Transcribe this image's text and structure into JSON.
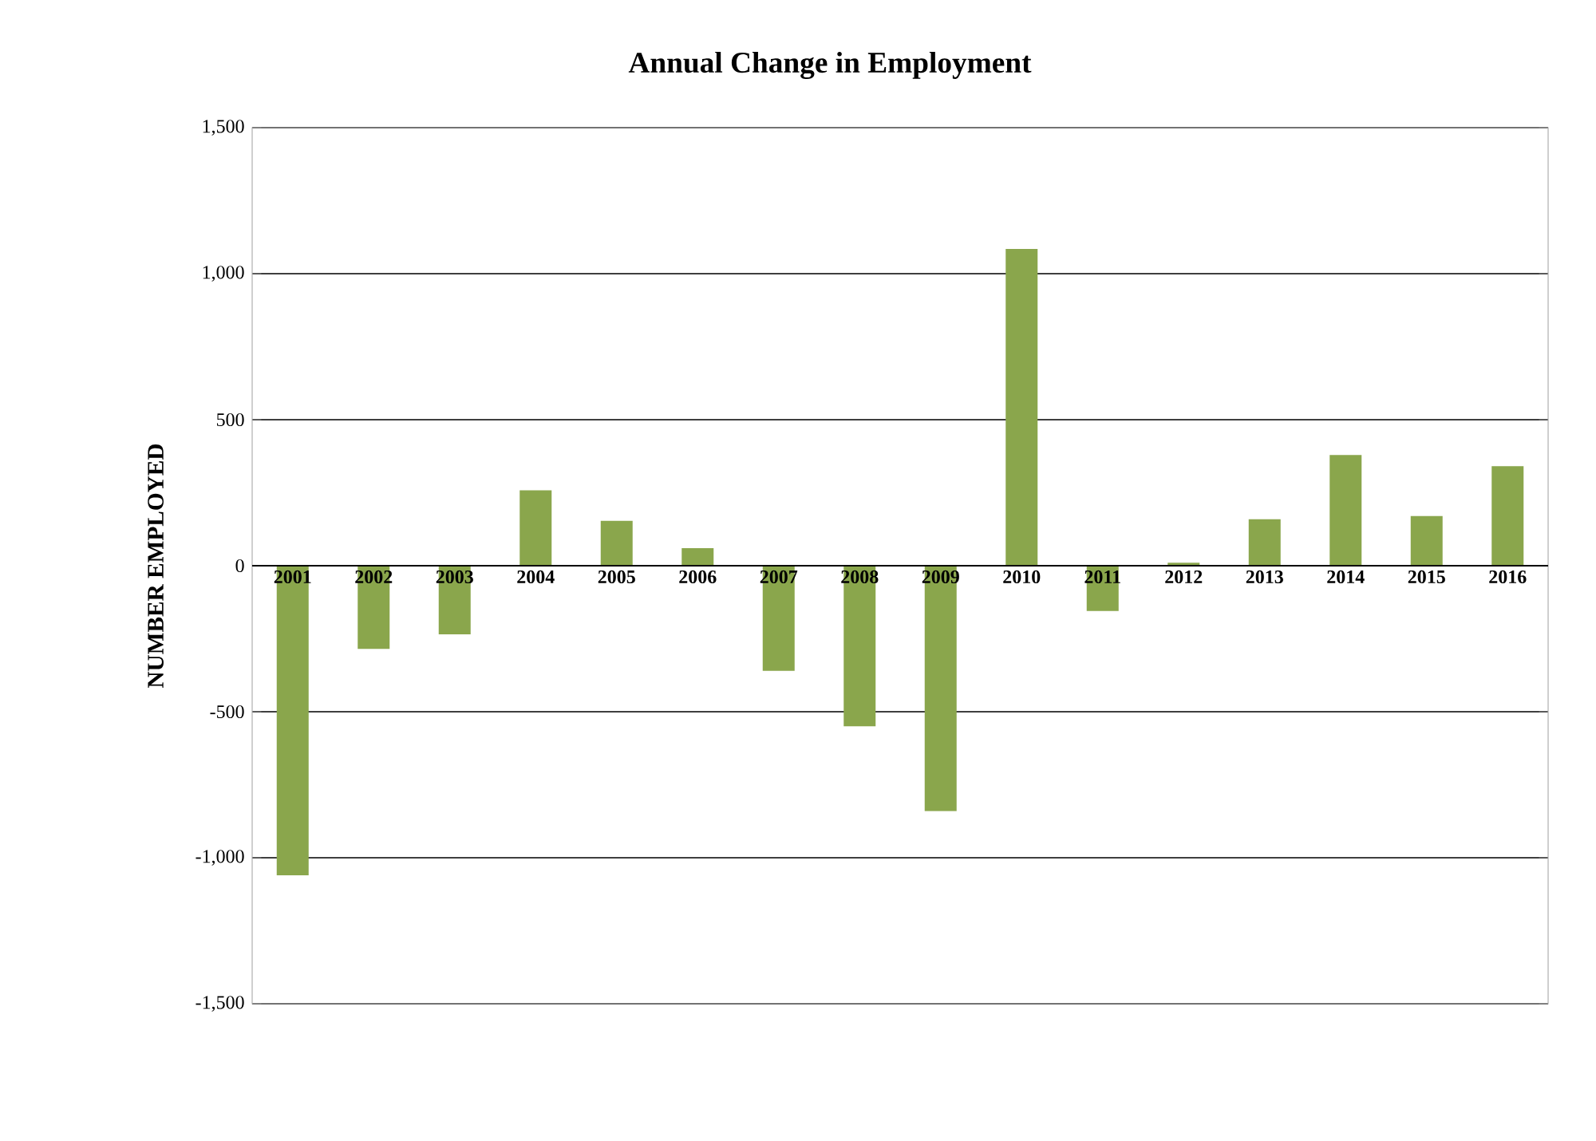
{
  "chart_data": {
    "type": "bar",
    "title": "Annual Change in Employment",
    "ylabel": "NUMBER EMPLOYED",
    "categories": [
      "2001",
      "2002",
      "2003",
      "2004",
      "2005",
      "2006",
      "2007",
      "2008",
      "2009",
      "2010",
      "2011",
      "2012",
      "2013",
      "2014",
      "2015",
      "2016"
    ],
    "values": [
      -1060,
      -285,
      -235,
      258,
      154,
      60,
      -360,
      -550,
      -840,
      1085,
      -155,
      10,
      159,
      379,
      170,
      341
    ],
    "color": "#8aa64c",
    "ylim": [
      -1500,
      1500
    ],
    "yticks": [
      {
        "value": -1500,
        "label": "-1,500"
      },
      {
        "value": -1000,
        "label": "-1,000"
      },
      {
        "value": -500,
        "label": "-500"
      },
      0,
      500,
      {
        "value": 1000,
        "label": "1,000"
      },
      {
        "value": 1500,
        "label": "1,500"
      }
    ],
    "grid": "y"
  }
}
